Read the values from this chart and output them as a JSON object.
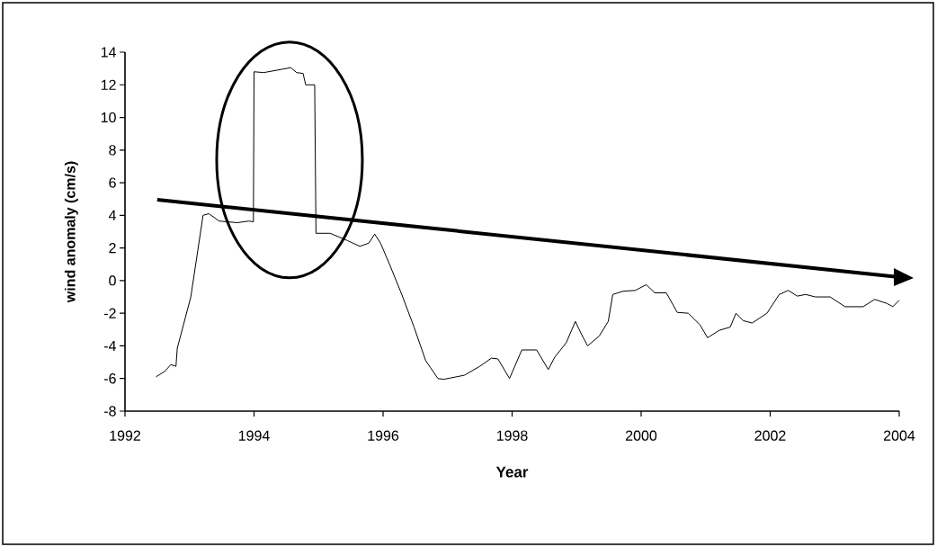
{
  "chart_data": {
    "type": "line",
    "xlabel": "Year",
    "ylabel": "wind anomaly (cm/s)",
    "xlim": [
      1992,
      2004
    ],
    "xticks": [
      1992,
      1994,
      1996,
      1998,
      2000,
      2002,
      2004
    ],
    "ylim": [
      -8,
      14
    ],
    "yticks": [
      -8,
      -6,
      -4,
      -2,
      0,
      2,
      4,
      6,
      8,
      10,
      12,
      14
    ],
    "grid": false,
    "marker": "none",
    "line_style": "solid",
    "series": [
      {
        "color": "#000000",
        "x": [
          1992.48,
          1992.62,
          1992.71,
          1992.79,
          1992.81,
          1993.02,
          1993.21,
          1993.3,
          1993.46,
          1993.74,
          1993.92,
          1993.99,
          1994.0,
          1994.15,
          1994.43,
          1994.57,
          1994.66,
          1994.76,
          1994.8,
          1994.94,
          1994.96,
          1995.18,
          1995.45,
          1995.64,
          1995.78,
          1995.87,
          1995.96,
          1996.1,
          1996.29,
          1996.48,
          1996.66,
          1996.85,
          1996.94,
          1997.26,
          1997.5,
          1997.68,
          1997.78,
          1997.96,
          1998.15,
          1998.38,
          1998.56,
          1998.66,
          1998.84,
          1998.98,
          1999.07,
          1999.17,
          1999.35,
          1999.49,
          1999.56,
          1999.72,
          1999.91,
          2000.08,
          2000.21,
          2000.39,
          2000.56,
          2000.73,
          2000.91,
          2001.03,
          2001.21,
          2001.38,
          2001.47,
          2001.58,
          2001.72,
          2001.95,
          2002.14,
          2002.28,
          2002.42,
          2002.55,
          2002.7,
          2002.93,
          2003.16,
          2003.44,
          2003.62,
          2003.81,
          2003.9,
          2004.0
        ],
        "values": [
          -5.9,
          -5.55,
          -5.15,
          -5.25,
          -4.15,
          -1.0,
          4.0,
          4.1,
          3.65,
          3.55,
          3.65,
          3.6,
          12.8,
          12.75,
          12.95,
          13.05,
          12.75,
          12.7,
          12.0,
          12.0,
          2.9,
          2.9,
          2.45,
          2.1,
          2.3,
          2.85,
          2.3,
          1.0,
          -0.85,
          -2.85,
          -4.9,
          -6.0,
          -6.05,
          -5.8,
          -5.25,
          -4.75,
          -4.8,
          -6.0,
          -4.25,
          -4.25,
          -5.45,
          -4.7,
          -3.8,
          -2.5,
          -3.25,
          -4.0,
          -3.4,
          -2.5,
          -0.85,
          -0.65,
          -0.6,
          -0.25,
          -0.75,
          -0.75,
          -1.95,
          -2.0,
          -2.7,
          -3.5,
          -3.05,
          -2.85,
          -2.0,
          -2.45,
          -2.6,
          -2.0,
          -0.85,
          -0.6,
          -0.95,
          -0.85,
          -1.0,
          -1.0,
          -1.6,
          -1.6,
          -1.15,
          -1.4,
          -1.6,
          -1.2
        ]
      },
      {
        "type": "line",
        "color": "#000000",
        "marker": "triangle",
        "x": [
          1992.5,
          2004.0
        ],
        "values": [
          4.96,
          0.22
        ]
      }
    ]
  }
}
